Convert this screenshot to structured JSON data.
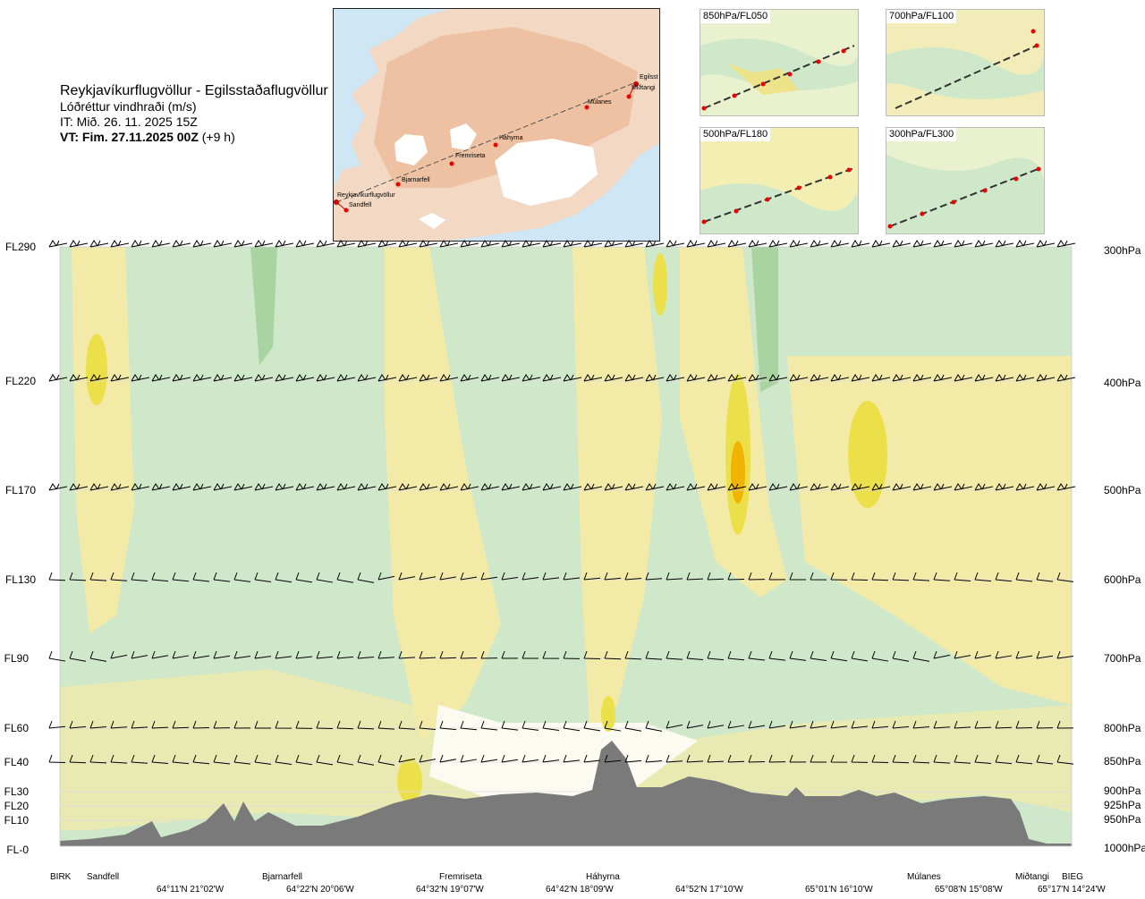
{
  "header": {
    "title": "Reykjavíkurflugvöllur - Egilsstaðaflugvöllur",
    "subtitle": "Lóðréttur vindhraði (m/s)",
    "issue_time": "IT: Mið. 26. 11. 2025 15Z",
    "valid_time_bold": "VT: Fim. 27.11.2025 00Z",
    "valid_time_offset": "(+9 h)"
  },
  "route_map": {
    "points": [
      {
        "name": "Reykjavíkurflugvöllur"
      },
      {
        "name": "Sandfell"
      },
      {
        "name": "Bjarnarfell"
      },
      {
        "name": "Fremriseta"
      },
      {
        "name": "Háhyrna"
      },
      {
        "name": "Múlanes"
      },
      {
        "name": "Miðtangi"
      },
      {
        "name": "Egilsst"
      }
    ]
  },
  "mini_maps": [
    {
      "label": "850hPa/FL050"
    },
    {
      "label": "700hPa/FL100"
    },
    {
      "label": "500hPa/FL180"
    },
    {
      "label": "300hPa/FL300"
    }
  ],
  "levels": [
    {
      "fl": "FL290",
      "hpa": "300hPa"
    },
    {
      "fl": "FL220",
      "hpa": "400hPa"
    },
    {
      "fl": "FL170",
      "hpa": "500hPa"
    },
    {
      "fl": "FL130",
      "hpa": "600hPa"
    },
    {
      "fl": "FL90",
      "hpa": "700hPa"
    },
    {
      "fl": "FL60",
      "hpa": "800hPa"
    },
    {
      "fl": "FL40",
      "hpa": "850hPa"
    },
    {
      "fl": "FL30",
      "hpa": "900hPa"
    },
    {
      "fl": "FL20",
      "hpa": "925hPa"
    },
    {
      "fl": "FL10",
      "hpa": "950hPa"
    },
    {
      "fl": "FL-0",
      "hpa": "1000hPa"
    }
  ],
  "stations": [
    "BIRK",
    "Sandfell",
    "Bjarnarfell",
    "Fremriseta",
    "Háhyrna",
    "Múlanes",
    "Miðtangi",
    "BIEG"
  ],
  "coordinates": [
    "64°11'N 21°02'W",
    "64°22'N 20°06'W",
    "64°32'N 19°07'W",
    "64°42'N 18°09'W",
    "64°52'N 17°10'W",
    "65°01'N 16°10'W",
    "65°08'N 15°08'W",
    "65°17'N 14°24'W"
  ],
  "colors": {
    "green": "#cfe8c9",
    "green_dark": "#a9d3a0",
    "yellow": "#f4eaa8",
    "yellow_strong": "#ece04a",
    "orange": "#f0b400",
    "terrain": "#7a7a7a",
    "white": "#fbfbf2"
  }
}
